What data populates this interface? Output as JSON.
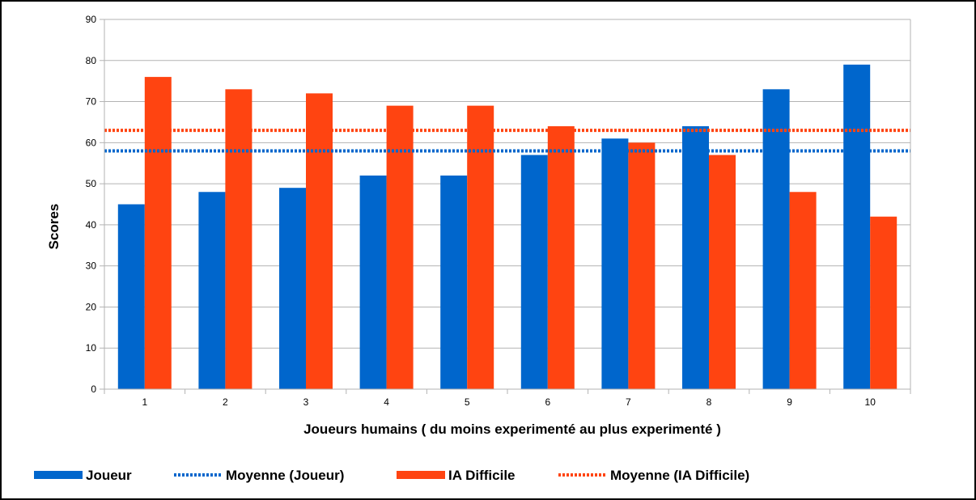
{
  "chart_data": {
    "type": "bar",
    "categories": [
      "1",
      "2",
      "3",
      "4",
      "5",
      "6",
      "7",
      "8",
      "9",
      "10"
    ],
    "series": [
      {
        "name": "Joueur",
        "kind": "bar",
        "color": "#0066CC",
        "values": [
          45,
          48,
          49,
          52,
          52,
          57,
          61,
          64,
          73,
          79
        ]
      },
      {
        "name": "IA Difficile",
        "kind": "bar",
        "color": "#FF4411",
        "values": [
          76,
          73,
          72,
          69,
          69,
          64,
          60,
          57,
          48,
          42
        ]
      }
    ],
    "reference_lines": [
      {
        "name": "Moyenne (Joueur)",
        "value": 58,
        "color": "#0066CC",
        "style": "dotted"
      },
      {
        "name": "Moyenne (IA Difficile)",
        "value": 63,
        "color": "#FF4411",
        "style": "dotted"
      }
    ],
    "xlabel": "Joueurs humains ( du moins experimenté au plus experimenté )",
    "ylabel": "Scores",
    "ylim": [
      0,
      90
    ],
    "yticks": [
      "0",
      "10",
      "20",
      "30",
      "40",
      "50",
      "60",
      "70",
      "80",
      "90"
    ],
    "grid": true,
    "legend_position": "bottom",
    "legend": [
      "Joueur",
      "Moyenne (Joueur)",
      "IA Difficile",
      "Moyenne (IA Difficile)"
    ]
  }
}
